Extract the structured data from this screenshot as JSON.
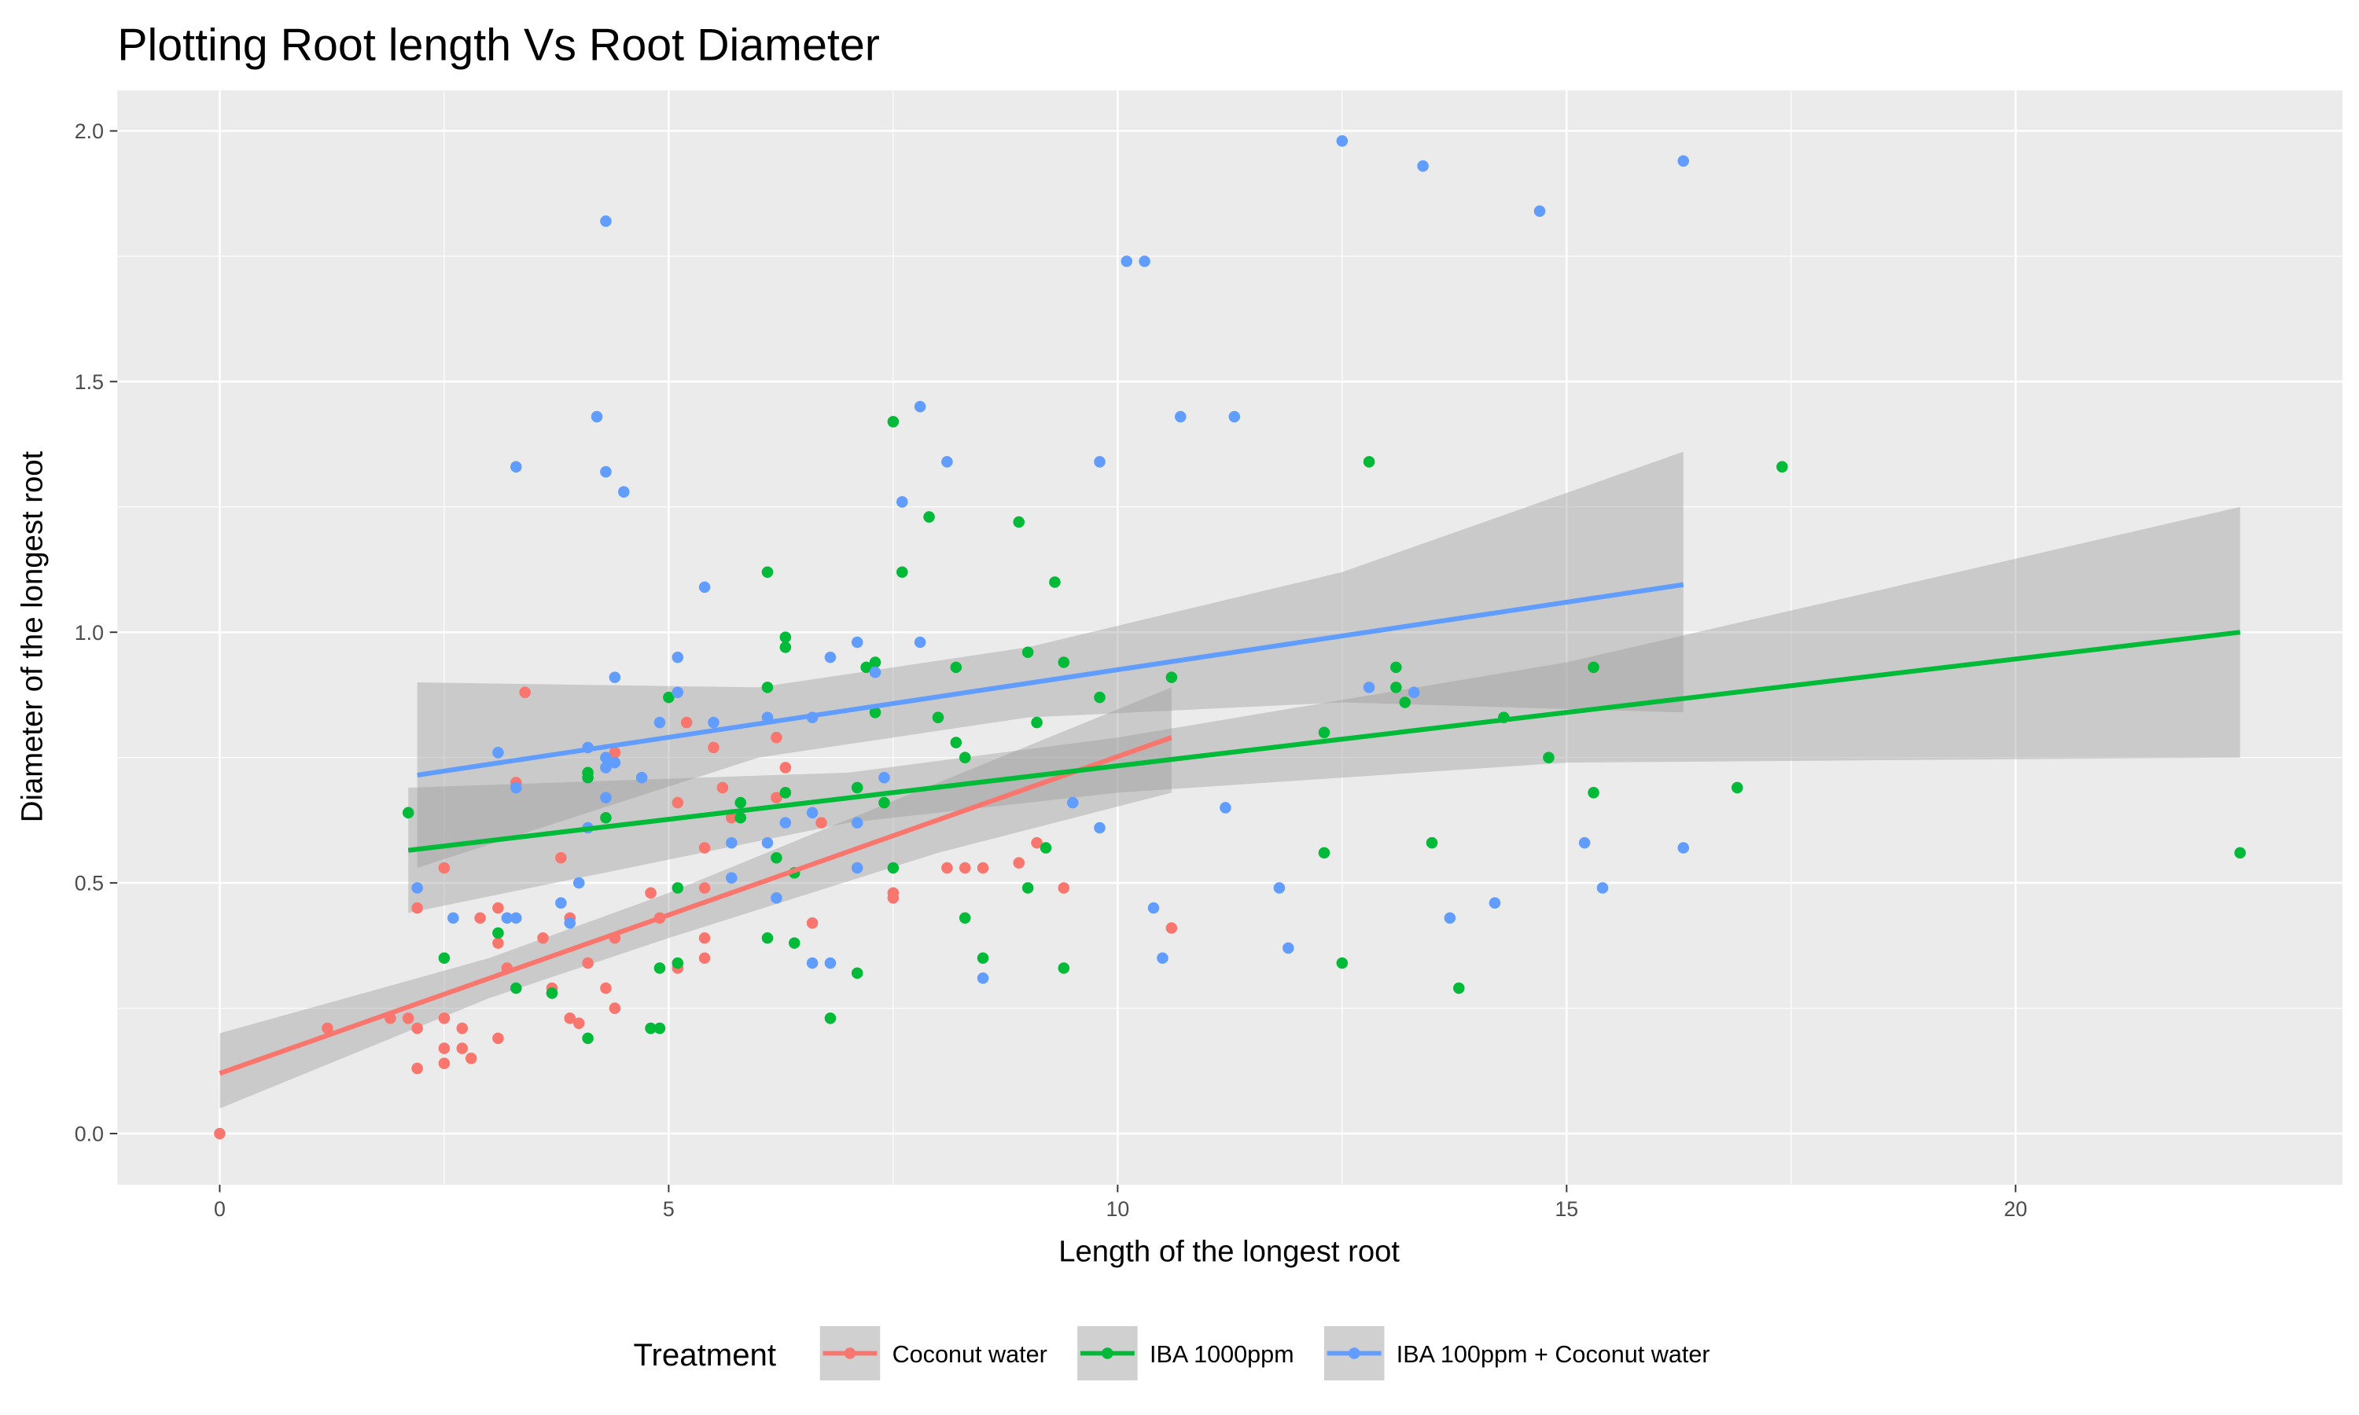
{
  "chart_data": {
    "type": "scatter",
    "title": "Plotting Root length Vs Root Diameter",
    "xlabel": "Length of the longest root",
    "ylabel": "Diameter of the longest root",
    "xlim": [
      -1.14,
      23.64
    ],
    "ylim": [
      -0.102,
      2.081
    ],
    "xticks": [
      0,
      5,
      10,
      15,
      20
    ],
    "xtick_labels": [
      "0",
      "5",
      "10",
      "15",
      "20"
    ],
    "yticks": [
      0,
      0.5,
      1,
      1.5,
      2
    ],
    "ytick_labels": [
      "0.0",
      "0.5",
      "1.0",
      "1.5",
      "2.0"
    ],
    "grid": true,
    "legend": {
      "title": "Treatment",
      "placement": "bottom"
    },
    "series": [
      {
        "name": "Coconut water",
        "color": "#F8766D",
        "points": [
          [
            0,
            0
          ],
          [
            1.2,
            0.21
          ],
          [
            1.9,
            0.23
          ],
          [
            2.1,
            0.23
          ],
          [
            2.2,
            0.21
          ],
          [
            2.2,
            0.13
          ],
          [
            2.2,
            0.45
          ],
          [
            2.5,
            0.53
          ],
          [
            2.5,
            0.23
          ],
          [
            2.5,
            0.17
          ],
          [
            2.5,
            0.14
          ],
          [
            2.7,
            0.21
          ],
          [
            2.7,
            0.17
          ],
          [
            2.8,
            0.15
          ],
          [
            2.9,
            0.43
          ],
          [
            3.1,
            0.45
          ],
          [
            3.1,
            0.19
          ],
          [
            3.1,
            0.38
          ],
          [
            3.2,
            0.33
          ],
          [
            3.3,
            0.7
          ],
          [
            3.4,
            0.88
          ],
          [
            3.6,
            0.39
          ],
          [
            3.7,
            0.29
          ],
          [
            3.8,
            0.55
          ],
          [
            3.9,
            0.43
          ],
          [
            3.9,
            0.23
          ],
          [
            4.0,
            0.22
          ],
          [
            4.1,
            0.34
          ],
          [
            4.3,
            0.29
          ],
          [
            4.4,
            0.25
          ],
          [
            4.4,
            0.39
          ],
          [
            4.4,
            0.76
          ],
          [
            4.8,
            0.48
          ],
          [
            4.9,
            0.43
          ],
          [
            5.1,
            0.33
          ],
          [
            5.1,
            0.66
          ],
          [
            5.2,
            0.82
          ],
          [
            5.4,
            0.57
          ],
          [
            5.4,
            0.49
          ],
          [
            5.4,
            0.39
          ],
          [
            5.4,
            0.35
          ],
          [
            5.5,
            0.77
          ],
          [
            5.6,
            0.69
          ],
          [
            5.7,
            0.63
          ],
          [
            6.2,
            0.79
          ],
          [
            6.2,
            0.67
          ],
          [
            6.3,
            0.73
          ],
          [
            6.6,
            0.42
          ],
          [
            6.7,
            0.62
          ],
          [
            7.5,
            0.48
          ],
          [
            7.5,
            0.47
          ],
          [
            8.1,
            0.53
          ],
          [
            8.3,
            0.53
          ],
          [
            8.5,
            0.53
          ],
          [
            8.9,
            0.54
          ],
          [
            9.1,
            0.58
          ],
          [
            9.4,
            0.49
          ],
          [
            10.6,
            0.41
          ]
        ],
        "fit": [
          [
            0,
            0.12
          ],
          [
            10.6,
            0.79
          ]
        ],
        "band": [
          [
            0,
            0.05,
            0.2
          ],
          [
            3,
            0.27,
            0.35
          ],
          [
            5,
            0.39,
            0.48
          ],
          [
            8,
            0.56,
            0.7
          ],
          [
            10.6,
            0.68,
            0.89
          ]
        ]
      },
      {
        "name": "IBA 1000ppm",
        "color": "#00BA38",
        "points": [
          [
            2.1,
            0.64
          ],
          [
            2.5,
            0.35
          ],
          [
            3.1,
            0.4
          ],
          [
            3.3,
            0.29
          ],
          [
            3.7,
            0.28
          ],
          [
            4.1,
            0.72
          ],
          [
            4.1,
            0.71
          ],
          [
            4.1,
            0.19
          ],
          [
            4.3,
            0.63
          ],
          [
            4.8,
            0.21
          ],
          [
            4.9,
            0.21
          ],
          [
            4.9,
            0.33
          ],
          [
            5.0,
            0.87
          ],
          [
            5.1,
            0.49
          ],
          [
            5.1,
            0.34
          ],
          [
            6.1,
            1.12
          ],
          [
            6.1,
            0.89
          ],
          [
            6.2,
            0.55
          ],
          [
            6.1,
            0.39
          ],
          [
            6.3,
            0.99
          ],
          [
            6.3,
            0.97
          ],
          [
            6.3,
            0.68
          ],
          [
            6.4,
            0.52
          ],
          [
            6.4,
            0.38
          ],
          [
            5.8,
            0.66
          ],
          [
            5.8,
            0.63
          ],
          [
            6.8,
            0.23
          ],
          [
            7.1,
            0.32
          ],
          [
            7.1,
            0.69
          ],
          [
            7.2,
            0.93
          ],
          [
            7.3,
            0.94
          ],
          [
            7.3,
            0.84
          ],
          [
            7.4,
            0.66
          ],
          [
            7.5,
            1.42
          ],
          [
            7.5,
            0.53
          ],
          [
            7.6,
            1.12
          ],
          [
            7.9,
            1.23
          ],
          [
            8.0,
            0.83
          ],
          [
            8.2,
            0.78
          ],
          [
            8.2,
            0.93
          ],
          [
            8.3,
            0.75
          ],
          [
            8.3,
            0.43
          ],
          [
            8.5,
            0.35
          ],
          [
            8.9,
            1.22
          ],
          [
            9.0,
            0.96
          ],
          [
            9.0,
            0.49
          ],
          [
            9.1,
            0.82
          ],
          [
            9.2,
            0.57
          ],
          [
            9.3,
            1.1
          ],
          [
            9.4,
            0.94
          ],
          [
            9.4,
            0.33
          ],
          [
            9.8,
            0.87
          ],
          [
            10.6,
            0.91
          ],
          [
            12.3,
            0.56
          ],
          [
            12.3,
            0.8
          ],
          [
            12.5,
            0.34
          ],
          [
            12.8,
            1.34
          ],
          [
            13.1,
            0.93
          ],
          [
            13.1,
            0.89
          ],
          [
            13.2,
            0.86
          ],
          [
            13.5,
            0.58
          ],
          [
            13.8,
            0.29
          ],
          [
            14.3,
            0.83
          ],
          [
            14.8,
            0.75
          ],
          [
            15.3,
            0.93
          ],
          [
            15.3,
            0.68
          ],
          [
            16.9,
            0.69
          ],
          [
            17.4,
            1.33
          ],
          [
            22.5,
            0.56
          ]
        ],
        "fit": [
          [
            2.1,
            0.565
          ],
          [
            22.5,
            1.0
          ]
        ],
        "band": [
          [
            2.1,
            0.44,
            0.69
          ],
          [
            7,
            0.62,
            0.72
          ],
          [
            10,
            0.68,
            0.79
          ],
          [
            15,
            0.74,
            0.94
          ],
          [
            22.5,
            0.75,
            1.25
          ]
        ]
      },
      {
        "name": "IBA 100ppm + Coconut water",
        "color": "#619CFF",
        "points": [
          [
            2.2,
            0.49
          ],
          [
            2.6,
            0.43
          ],
          [
            3.1,
            0.76
          ],
          [
            3.2,
            0.43
          ],
          [
            3.3,
            0.43
          ],
          [
            3.3,
            1.33
          ],
          [
            3.3,
            0.69
          ],
          [
            3.8,
            0.46
          ],
          [
            3.9,
            0.42
          ],
          [
            4.0,
            0.5
          ],
          [
            4.1,
            0.77
          ],
          [
            4.1,
            0.61
          ],
          [
            4.2,
            1.43
          ],
          [
            4.3,
            1.82
          ],
          [
            4.3,
            1.32
          ],
          [
            4.3,
            0.75
          ],
          [
            4.3,
            0.73
          ],
          [
            4.3,
            0.67
          ],
          [
            4.4,
            0.91
          ],
          [
            4.4,
            0.74
          ],
          [
            4.5,
            1.28
          ],
          [
            4.7,
            0.71
          ],
          [
            4.9,
            0.82
          ],
          [
            5.1,
            0.95
          ],
          [
            5.1,
            0.88
          ],
          [
            5.4,
            1.09
          ],
          [
            5.5,
            0.82
          ],
          [
            5.7,
            0.51
          ],
          [
            5.7,
            0.58
          ],
          [
            6.1,
            0.83
          ],
          [
            6.1,
            0.58
          ],
          [
            6.2,
            0.47
          ],
          [
            6.3,
            0.62
          ],
          [
            6.6,
            0.83
          ],
          [
            6.6,
            0.64
          ],
          [
            6.6,
            0.34
          ],
          [
            6.8,
            0.95
          ],
          [
            6.8,
            0.34
          ],
          [
            7.1,
            0.98
          ],
          [
            7.1,
            0.62
          ],
          [
            7.1,
            0.53
          ],
          [
            7.3,
            0.92
          ],
          [
            7.4,
            0.71
          ],
          [
            7.6,
            1.26
          ],
          [
            7.8,
            1.45
          ],
          [
            7.8,
            0.98
          ],
          [
            8.1,
            1.34
          ],
          [
            8.5,
            0.31
          ],
          [
            9.5,
            0.66
          ],
          [
            9.8,
            1.34
          ],
          [
            9.8,
            0.61
          ],
          [
            10.1,
            1.74
          ],
          [
            10.3,
            1.74
          ],
          [
            10.4,
            0.45
          ],
          [
            10.5,
            0.35
          ],
          [
            10.7,
            1.43
          ],
          [
            11.3,
            1.43
          ],
          [
            11.2,
            0.65
          ],
          [
            11.8,
            0.49
          ],
          [
            11.9,
            0.37
          ],
          [
            12.5,
            1.98
          ],
          [
            12.8,
            0.89
          ],
          [
            13.3,
            0.88
          ],
          [
            13.4,
            1.93
          ],
          [
            13.7,
            0.43
          ],
          [
            14.2,
            0.46
          ],
          [
            14.7,
            1.84
          ],
          [
            15.2,
            0.58
          ],
          [
            15.4,
            0.49
          ],
          [
            16.3,
            1.94
          ],
          [
            16.3,
            0.57
          ]
        ],
        "fit": [
          [
            2.2,
            0.715
          ],
          [
            16.3,
            1.095
          ]
        ],
        "band": [
          [
            2.2,
            0.53,
            0.9
          ],
          [
            6,
            0.75,
            0.89
          ],
          [
            9,
            0.83,
            0.97
          ],
          [
            12.5,
            0.86,
            1.12
          ],
          [
            16.3,
            0.84,
            1.36
          ]
        ]
      }
    ]
  }
}
